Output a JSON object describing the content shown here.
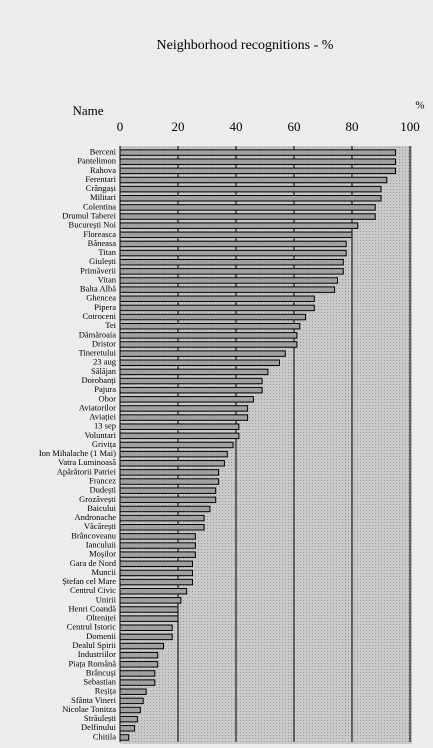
{
  "chart_data": {
    "type": "barh",
    "title": "Neighborhood recognitions - %",
    "category_label": "Name",
    "value_label": "%",
    "categories": [
      "Berceni",
      "Pantelimon",
      "Rahova",
      "Ferentari",
      "Crângași",
      "Militari",
      "Colentina",
      "Drumul Taberei",
      "București Noi",
      "Floreasca",
      "Băneasa",
      "Titan",
      "Giulești",
      "Primăverii",
      "Vitan",
      "Balta Albă",
      "Ghencea",
      "Pipera",
      "Cotroceni",
      "Tei",
      "Dămăroaia",
      "Dristor",
      "Tineretului",
      "23 aug",
      "Sălăjan",
      "Dorobanți",
      "Pajura",
      "Obor",
      "Aviatorilor",
      "Aviației",
      "13 sep",
      "Voluntari",
      "Grivița",
      "Ion Mihalache (1 Mai)",
      "Vatra Luminoasă",
      "Apărătorii Patriei",
      "Francez",
      "Dudești",
      "Grozăvești",
      "Baicului",
      "Andronache",
      "Văcărești",
      "Brâncoveanu",
      "Ianculuii",
      "Moșilor",
      "Gara de Nord",
      "Muncii",
      "Ștefan cel Mare",
      "Centrul Civic",
      "Unirii",
      "Henri Coandă",
      "Olteniței",
      "Centrul Istoric",
      "Domenii",
      "Dealul Spirii",
      "Industriilor",
      "Piața Română",
      "Brâncuși",
      "Sebastian",
      "Reșița",
      "Sfânta Vineri",
      "Nicolae Tonitza",
      "Străulești",
      "Delfinului",
      "Chitila"
    ],
    "values": [
      95,
      95,
      95,
      92,
      90,
      90,
      88,
      88,
      82,
      80,
      78,
      78,
      77,
      77,
      75,
      74,
      67,
      67,
      64,
      62,
      61,
      61,
      57,
      55,
      51,
      49,
      49,
      46,
      44,
      44,
      41,
      41,
      39,
      37,
      36,
      34,
      34,
      33,
      33,
      31,
      29,
      29,
      26,
      26,
      26,
      25,
      25,
      25,
      23,
      21,
      20,
      20,
      18,
      18,
      15,
      13,
      13,
      12,
      12,
      9,
      8,
      7,
      6,
      5,
      3
    ],
    "color": "#a0a0a0",
    "xlim": [
      0,
      100
    ],
    "xticks": [
      0,
      20,
      40,
      60,
      80,
      100
    ],
    "grid": true
  }
}
